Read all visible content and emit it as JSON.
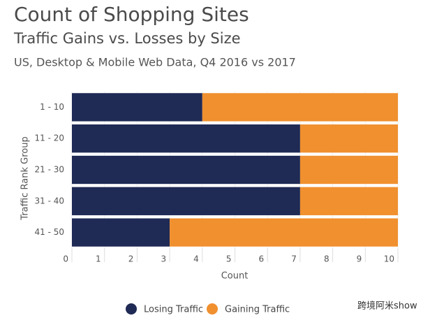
{
  "chart_data": {
    "type": "stacked-bar-horizontal",
    "title": "Count of Shopping Sites",
    "subtitle": "Traffic Gains vs. Losses by Size",
    "caption": "US, Desktop & Mobile Web Data, Q4 2016 vs 2017",
    "x_label": "Count",
    "y_label": "Traffic Rank Group",
    "categories": [
      "1 - 10",
      "11 - 20",
      "21 - 30",
      "31 - 40",
      "41 - 50"
    ],
    "series": [
      {
        "name": "Losing Traffic",
        "color": "#1f2a55",
        "values": [
          4,
          7,
          7,
          7,
          3
        ]
      },
      {
        "name": "Gaining Traffic",
        "color": "#f0902f",
        "values": [
          6,
          3,
          3,
          3,
          7
        ]
      }
    ],
    "xlim": [
      0,
      10
    ],
    "xticks": [
      0,
      1,
      2,
      3,
      4,
      5,
      6,
      7,
      8,
      9,
      10
    ],
    "grid": true,
    "watermark": "跨境阿米show"
  }
}
